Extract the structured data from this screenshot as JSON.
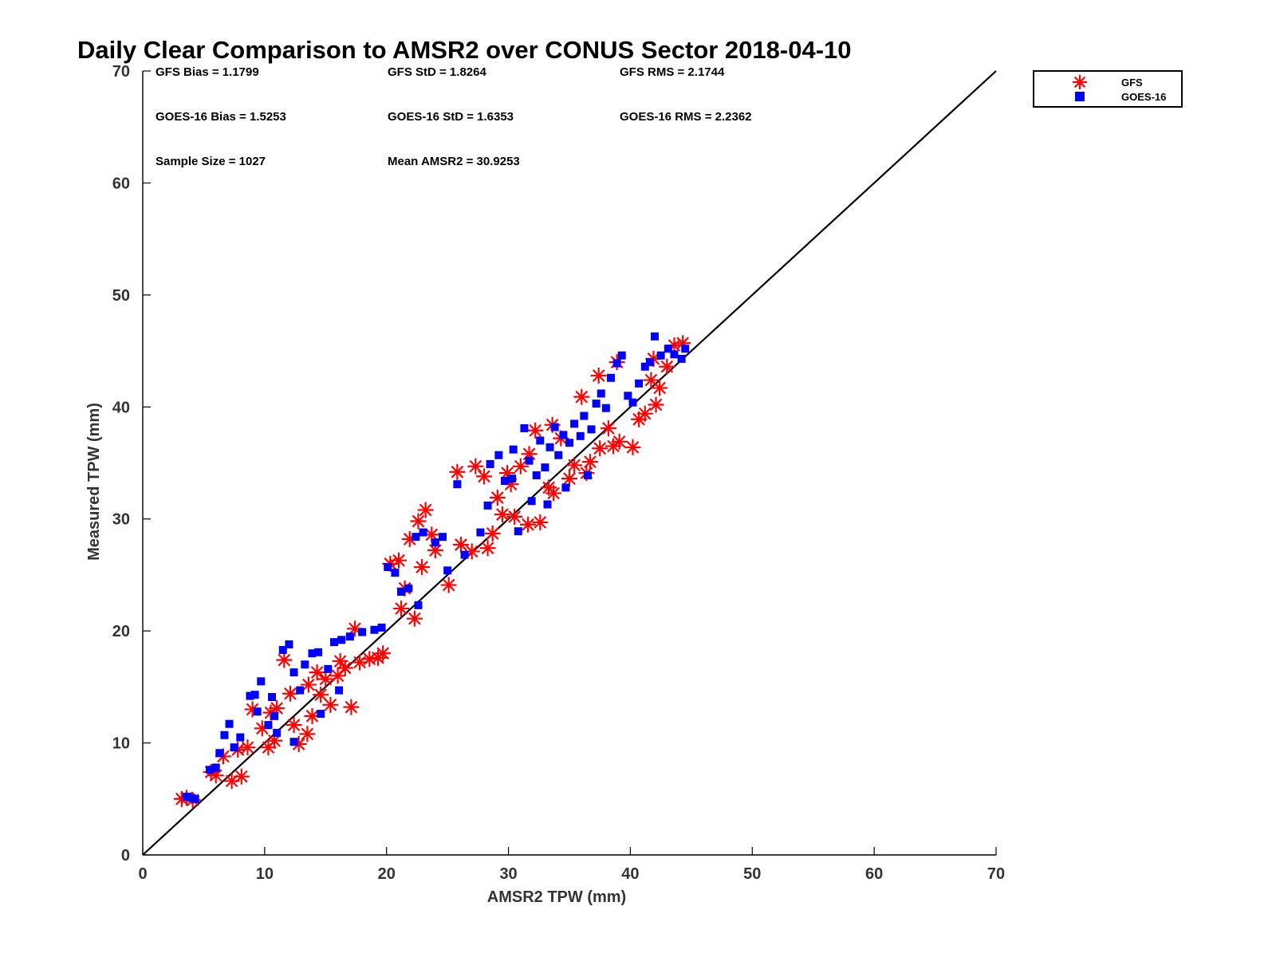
{
  "chart_data": {
    "type": "scatter",
    "title": "Daily Clear Comparison to AMSR2 over CONUS Sector 2018-04-10",
    "xlabel": "AMSR2 TPW (mm)",
    "ylabel": "Measured TPW (mm)",
    "xlim": [
      0,
      70
    ],
    "ylim": [
      0,
      70
    ],
    "xticks": [
      0,
      10,
      20,
      30,
      40,
      50,
      60,
      70
    ],
    "yticks": [
      0,
      10,
      20,
      30,
      40,
      50,
      60,
      70
    ],
    "grid": false,
    "legend_position": "outside-top-right",
    "reference_line": {
      "x": [
        0,
        70
      ],
      "y": [
        0,
        70
      ],
      "color": "#000000"
    },
    "stats": [
      "GFS Bias = 1.1799",
      "GFS StD = 1.8264",
      "GFS RMS = 2.1744",
      "GOES-16 Bias = 1.5253",
      "GOES-16 StD = 1.6353",
      "GOES-16 RMS = 2.2362",
      "Sample Size = 1027",
      "Mean AMSR2 = 30.9253"
    ],
    "series": [
      {
        "name": "GFS",
        "marker": "asterisk",
        "color": "#ff0000",
        "points": [
          [
            3.2,
            5.0
          ],
          [
            3.6,
            5.1
          ],
          [
            4.1,
            4.9
          ],
          [
            5.6,
            7.4
          ],
          [
            6.0,
            7.1
          ],
          [
            7.3,
            6.6
          ],
          [
            8.1,
            7.0
          ],
          [
            6.6,
            8.8
          ],
          [
            7.8,
            9.4
          ],
          [
            8.6,
            9.6
          ],
          [
            9.0,
            13.0
          ],
          [
            10.3,
            9.6
          ],
          [
            10.8,
            10.2
          ],
          [
            11.6,
            17.4
          ],
          [
            12.4,
            11.6
          ],
          [
            12.8,
            9.9
          ],
          [
            13.5,
            10.8
          ],
          [
            13.9,
            12.4
          ],
          [
            14.3,
            16.3
          ],
          [
            15.0,
            15.7
          ],
          [
            15.4,
            13.4
          ],
          [
            16.2,
            17.3
          ],
          [
            16.6,
            16.7
          ],
          [
            17.1,
            13.2
          ],
          [
            17.4,
            20.2
          ],
          [
            17.8,
            17.2
          ],
          [
            18.6,
            17.5
          ],
          [
            19.3,
            17.6
          ],
          [
            19.7,
            18.0
          ],
          [
            20.3,
            26.0
          ],
          [
            21.0,
            26.3
          ],
          [
            21.5,
            23.8
          ],
          [
            21.2,
            22.0
          ],
          [
            22.3,
            21.1
          ],
          [
            22.6,
            29.8
          ],
          [
            21.9,
            28.2
          ],
          [
            23.2,
            30.8
          ],
          [
            24.0,
            27.2
          ],
          [
            25.1,
            24.1
          ],
          [
            25.8,
            34.2
          ],
          [
            27.3,
            34.7
          ],
          [
            26.1,
            27.7
          ],
          [
            27.0,
            27.1
          ],
          [
            28.3,
            27.4
          ],
          [
            28.7,
            28.7
          ],
          [
            29.5,
            30.4
          ],
          [
            29.9,
            34.1
          ],
          [
            30.5,
            30.2
          ],
          [
            31.6,
            29.5
          ],
          [
            31.0,
            34.7
          ],
          [
            32.6,
            29.7
          ],
          [
            33.3,
            32.8
          ],
          [
            33.7,
            32.3
          ],
          [
            34.3,
            37.2
          ],
          [
            35.0,
            33.6
          ],
          [
            35.4,
            34.8
          ],
          [
            36.4,
            34.1
          ],
          [
            36.7,
            35.1
          ],
          [
            37.5,
            36.3
          ],
          [
            38.2,
            38.1
          ],
          [
            38.6,
            36.5
          ],
          [
            39.1,
            36.9
          ],
          [
            40.2,
            36.4
          ],
          [
            40.7,
            38.9
          ],
          [
            41.2,
            39.4
          ],
          [
            41.7,
            42.4
          ],
          [
            42.1,
            40.2
          ],
          [
            42.4,
            41.7
          ],
          [
            43.0,
            43.6
          ],
          [
            43.6,
            45.5
          ],
          [
            44.3,
            45.7
          ],
          [
            41.9,
            44.3
          ],
          [
            38.9,
            44.0
          ],
          [
            37.4,
            42.8
          ],
          [
            36.0,
            40.9
          ],
          [
            33.6,
            38.4
          ],
          [
            32.2,
            37.9
          ],
          [
            31.7,
            35.8
          ],
          [
            30.2,
            33.1
          ],
          [
            28.0,
            33.8
          ],
          [
            29.1,
            31.9
          ],
          [
            13.6,
            15.2
          ],
          [
            12.1,
            14.4
          ],
          [
            11.0,
            13.1
          ],
          [
            16.0,
            16.0
          ],
          [
            14.6,
            14.3
          ],
          [
            9.8,
            11.3
          ],
          [
            10.5,
            12.7
          ],
          [
            22.9,
            25.7
          ],
          [
            23.7,
            28.6
          ]
        ]
      },
      {
        "name": "GOES-16",
        "marker": "square",
        "color": "#0000ff",
        "points": [
          [
            3.6,
            5.2
          ],
          [
            4.0,
            5.1
          ],
          [
            4.3,
            5.0
          ],
          [
            5.5,
            7.6
          ],
          [
            6.0,
            7.8
          ],
          [
            6.3,
            9.1
          ],
          [
            6.7,
            10.7
          ],
          [
            7.1,
            11.7
          ],
          [
            7.5,
            9.6
          ],
          [
            8.0,
            10.5
          ],
          [
            8.8,
            14.2
          ],
          [
            9.2,
            14.3
          ],
          [
            9.7,
            15.5
          ],
          [
            9.4,
            12.8
          ],
          [
            10.3,
            11.6
          ],
          [
            10.8,
            12.4
          ],
          [
            11.5,
            18.3
          ],
          [
            12.0,
            18.8
          ],
          [
            12.4,
            16.3
          ],
          [
            12.9,
            14.7
          ],
          [
            13.3,
            17.0
          ],
          [
            13.9,
            18.0
          ],
          [
            14.4,
            18.1
          ],
          [
            15.2,
            16.6
          ],
          [
            15.7,
            19.0
          ],
          [
            16.3,
            19.2
          ],
          [
            17.0,
            19.5
          ],
          [
            18.0,
            19.9
          ],
          [
            19.0,
            20.1
          ],
          [
            19.6,
            20.3
          ],
          [
            20.1,
            25.7
          ],
          [
            20.7,
            25.2
          ],
          [
            21.2,
            23.5
          ],
          [
            21.8,
            23.8
          ],
          [
            22.6,
            22.3
          ],
          [
            22.4,
            28.4
          ],
          [
            23.0,
            28.8
          ],
          [
            24.0,
            27.9
          ],
          [
            24.6,
            28.4
          ],
          [
            25.0,
            25.4
          ],
          [
            25.8,
            33.1
          ],
          [
            26.4,
            26.8
          ],
          [
            27.7,
            28.8
          ],
          [
            28.3,
            31.2
          ],
          [
            28.5,
            34.9
          ],
          [
            29.2,
            35.7
          ],
          [
            29.7,
            33.4
          ],
          [
            30.3,
            33.6
          ],
          [
            30.4,
            36.2
          ],
          [
            31.3,
            38.1
          ],
          [
            31.7,
            35.2
          ],
          [
            32.3,
            33.9
          ],
          [
            32.6,
            37.0
          ],
          [
            33.0,
            34.6
          ],
          [
            33.4,
            36.4
          ],
          [
            33.8,
            38.2
          ],
          [
            34.1,
            35.7
          ],
          [
            34.5,
            37.5
          ],
          [
            35.0,
            36.8
          ],
          [
            35.4,
            38.5
          ],
          [
            35.9,
            37.4
          ],
          [
            36.2,
            39.2
          ],
          [
            36.8,
            38.0
          ],
          [
            37.2,
            40.3
          ],
          [
            37.6,
            41.2
          ],
          [
            38.0,
            39.9
          ],
          [
            38.4,
            42.6
          ],
          [
            38.9,
            43.9
          ],
          [
            39.3,
            44.6
          ],
          [
            39.8,
            41.0
          ],
          [
            40.2,
            40.4
          ],
          [
            40.7,
            42.1
          ],
          [
            41.2,
            43.6
          ],
          [
            41.6,
            44.0
          ],
          [
            42.0,
            46.3
          ],
          [
            42.5,
            44.6
          ],
          [
            43.1,
            45.2
          ],
          [
            43.6,
            44.7
          ],
          [
            44.2,
            44.3
          ],
          [
            44.5,
            45.2
          ],
          [
            36.5,
            33.9
          ],
          [
            34.7,
            32.8
          ],
          [
            33.2,
            31.3
          ],
          [
            31.9,
            31.6
          ],
          [
            30.8,
            28.9
          ],
          [
            12.4,
            10.1
          ],
          [
            11.0,
            10.9
          ],
          [
            14.6,
            12.6
          ],
          [
            16.1,
            14.7
          ],
          [
            10.6,
            14.1
          ]
        ]
      }
    ]
  }
}
